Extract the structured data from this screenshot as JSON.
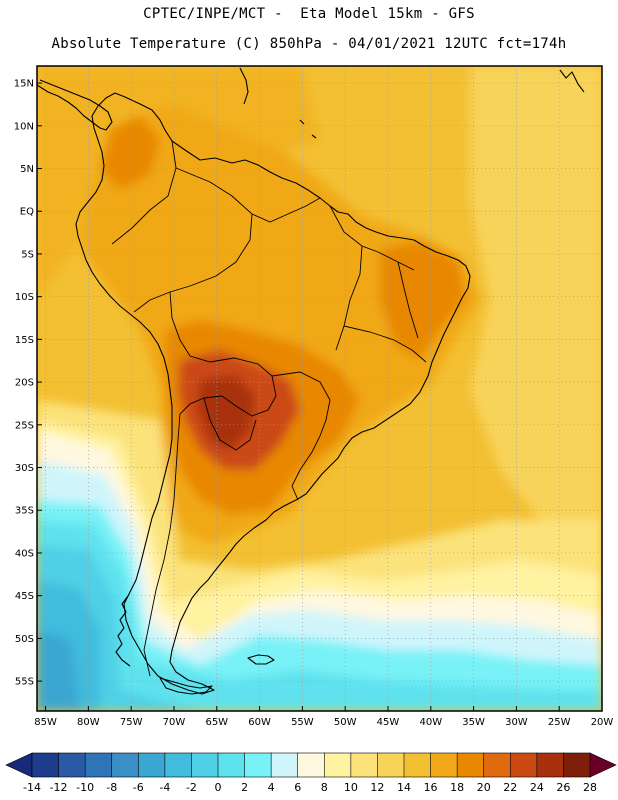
{
  "header": {
    "line1": "CPTEC/INPE/MCT -  Eta Model 15km - GFS",
    "line2": "Absolute Temperature (C) 850hPa - 04/01/2021 12UTC fct=174h"
  },
  "map": {
    "lat_labels": [
      "15N",
      "10N",
      "5N",
      "EQ",
      "5S",
      "10S",
      "15S",
      "20S",
      "25S",
      "30S",
      "35S",
      "40S",
      "45S",
      "50S",
      "55S"
    ],
    "lon_labels": [
      "85W",
      "80W",
      "75W",
      "70W",
      "65W",
      "60W",
      "55W",
      "50W",
      "45W",
      "40W",
      "35W",
      "30W",
      "25W",
      "20W"
    ],
    "lon_range": [
      -86,
      -20
    ],
    "lat_range": [
      17,
      -58.5
    ],
    "colors": {
      "frame": "#000000",
      "grid": "#9a9a9a",
      "coast": "#000000"
    }
  },
  "colorbar": {
    "levels": [
      "-14",
      "-12",
      "-10",
      "-8",
      "-6",
      "-4",
      "-2",
      "0",
      "2",
      "4",
      "6",
      "8",
      "10",
      "12",
      "14",
      "16",
      "18",
      "20",
      "22",
      "24",
      "26",
      "28"
    ],
    "colors": [
      "#1e3c8c",
      "#2a5aa5",
      "#2f74b6",
      "#3a8fc6",
      "#3aa6d2",
      "#41bcdd",
      "#4fd0e6",
      "#5ee2ee",
      "#78f2f7",
      "#cff5fb",
      "#fff8e0",
      "#fff2a0",
      "#fbe27a",
      "#f8d35a",
      "#f3c034",
      "#f0a818",
      "#e88800",
      "#e06a10",
      "#cb4a12",
      "#a8300d",
      "#7e1f0c"
    ],
    "low_color": "#1a2a7a",
    "high_color": "#6a0028"
  },
  "fields": {
    "base_color": "#f3c034",
    "ocean_east_color": "#f8d35a",
    "land_warm_color": "#f0a818",
    "hot_color": "#e88800",
    "very_hot_color": "#cb4a12",
    "core_color": "#a8300d",
    "cool_color": "#fbe27a",
    "mild_color": "#fff2a0",
    "pale_color": "#fff8e0",
    "cyan_light": "#cff5fb",
    "cyan": "#78f2f7",
    "cyan_mid": "#5ee2ee",
    "teal": "#4fd0e6",
    "blue": "#41bcdd",
    "blue_deep": "#3aa6d2"
  }
}
